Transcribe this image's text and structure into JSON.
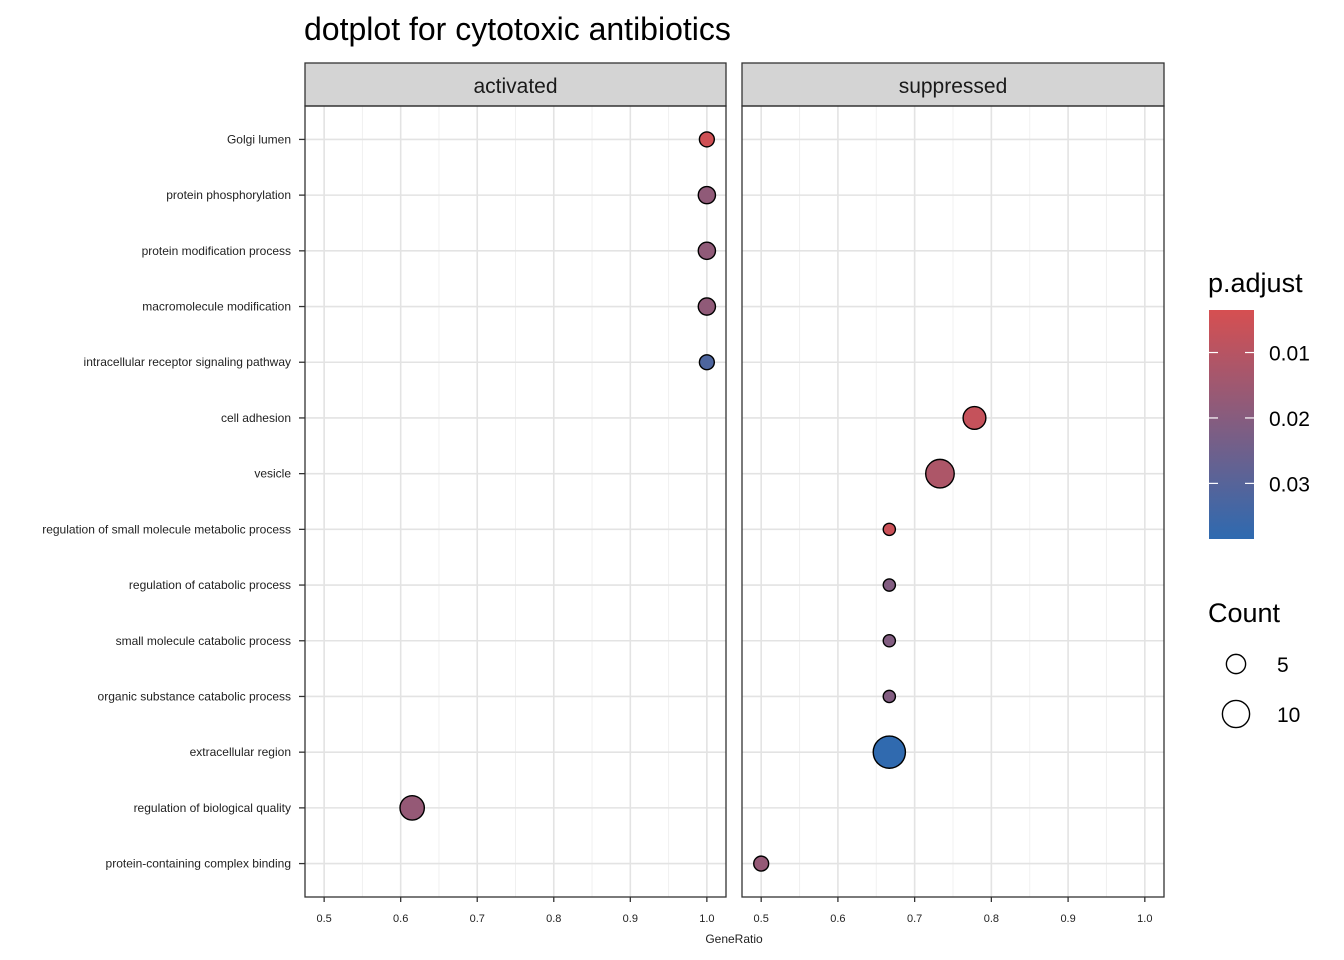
{
  "chart_data": {
    "type": "scatter",
    "title": "dotplot for cytotoxic antibiotics",
    "xlabel": "GeneRatio",
    "ylabel": "",
    "xlim": [
      0.475,
      1.025
    ],
    "xticks": [
      0.5,
      0.6,
      0.7,
      0.8,
      0.9,
      1.0
    ],
    "xtick_labels": [
      "0.5",
      "0.6",
      "0.7",
      "0.8",
      "0.9",
      "1.0"
    ],
    "grid": true,
    "facets": [
      "activated",
      "suppressed"
    ],
    "categories": [
      "Golgi lumen",
      "protein phosphorylation",
      "protein modification process",
      "macromolecule modification",
      "intracellular receptor signaling pathway",
      "cell adhesion",
      "vesicle",
      "regulation of small molecule metabolic process",
      "regulation of catabolic process",
      "small molecule catabolic process",
      "organic substance catabolic process",
      "extracellular region",
      "regulation of biological quality",
      "protein-containing complex binding"
    ],
    "points": [
      {
        "facet": "activated",
        "category": "Golgi lumen",
        "x": 1.0,
        "count": 3,
        "p_adjust": 0.005
      },
      {
        "facet": "activated",
        "category": "protein phosphorylation",
        "x": 1.0,
        "count": 4,
        "p_adjust": 0.018
      },
      {
        "facet": "activated",
        "category": "protein modification process",
        "x": 1.0,
        "count": 4,
        "p_adjust": 0.018
      },
      {
        "facet": "activated",
        "category": "macromolecule modification",
        "x": 1.0,
        "count": 4,
        "p_adjust": 0.018
      },
      {
        "facet": "activated",
        "category": "intracellular receptor signaling pathway",
        "x": 1.0,
        "count": 3,
        "p_adjust": 0.032
      },
      {
        "facet": "activated",
        "category": "regulation of biological quality",
        "x": 0.615,
        "count": 8,
        "p_adjust": 0.017
      },
      {
        "facet": "suppressed",
        "category": "cell adhesion",
        "x": 0.778,
        "count": 7,
        "p_adjust": 0.007
      },
      {
        "facet": "suppressed",
        "category": "vesicle",
        "x": 0.733,
        "count": 11,
        "p_adjust": 0.012
      },
      {
        "facet": "suppressed",
        "category": "regulation of small molecule metabolic process",
        "x": 0.667,
        "count": 2,
        "p_adjust": 0.006
      },
      {
        "facet": "suppressed",
        "category": "regulation of catabolic process",
        "x": 0.667,
        "count": 2,
        "p_adjust": 0.021
      },
      {
        "facet": "suppressed",
        "category": "small molecule catabolic process",
        "x": 0.667,
        "count": 2,
        "p_adjust": 0.021
      },
      {
        "facet": "suppressed",
        "category": "organic substance catabolic process",
        "x": 0.667,
        "count": 2,
        "p_adjust": 0.021
      },
      {
        "facet": "suppressed",
        "category": "extracellular region",
        "x": 0.667,
        "count": 14,
        "p_adjust": 0.038
      },
      {
        "facet": "suppressed",
        "category": "protein-containing complex binding",
        "x": 0.5,
        "count": 3,
        "p_adjust": 0.017
      }
    ],
    "color_legend": {
      "title": "p.adjust",
      "range": [
        0.0035,
        0.0385
      ],
      "low_color": "#d64f51",
      "high_color": "#2e6ab0",
      "ticks": [
        0.01,
        0.02,
        0.03
      ],
      "tick_labels": [
        "0.01",
        "0.02",
        "0.03"
      ],
      "position": "right"
    },
    "size_legend": {
      "title": "Count",
      "values": [
        5,
        10
      ],
      "labels": [
        "5",
        "10"
      ],
      "position": "right"
    }
  }
}
